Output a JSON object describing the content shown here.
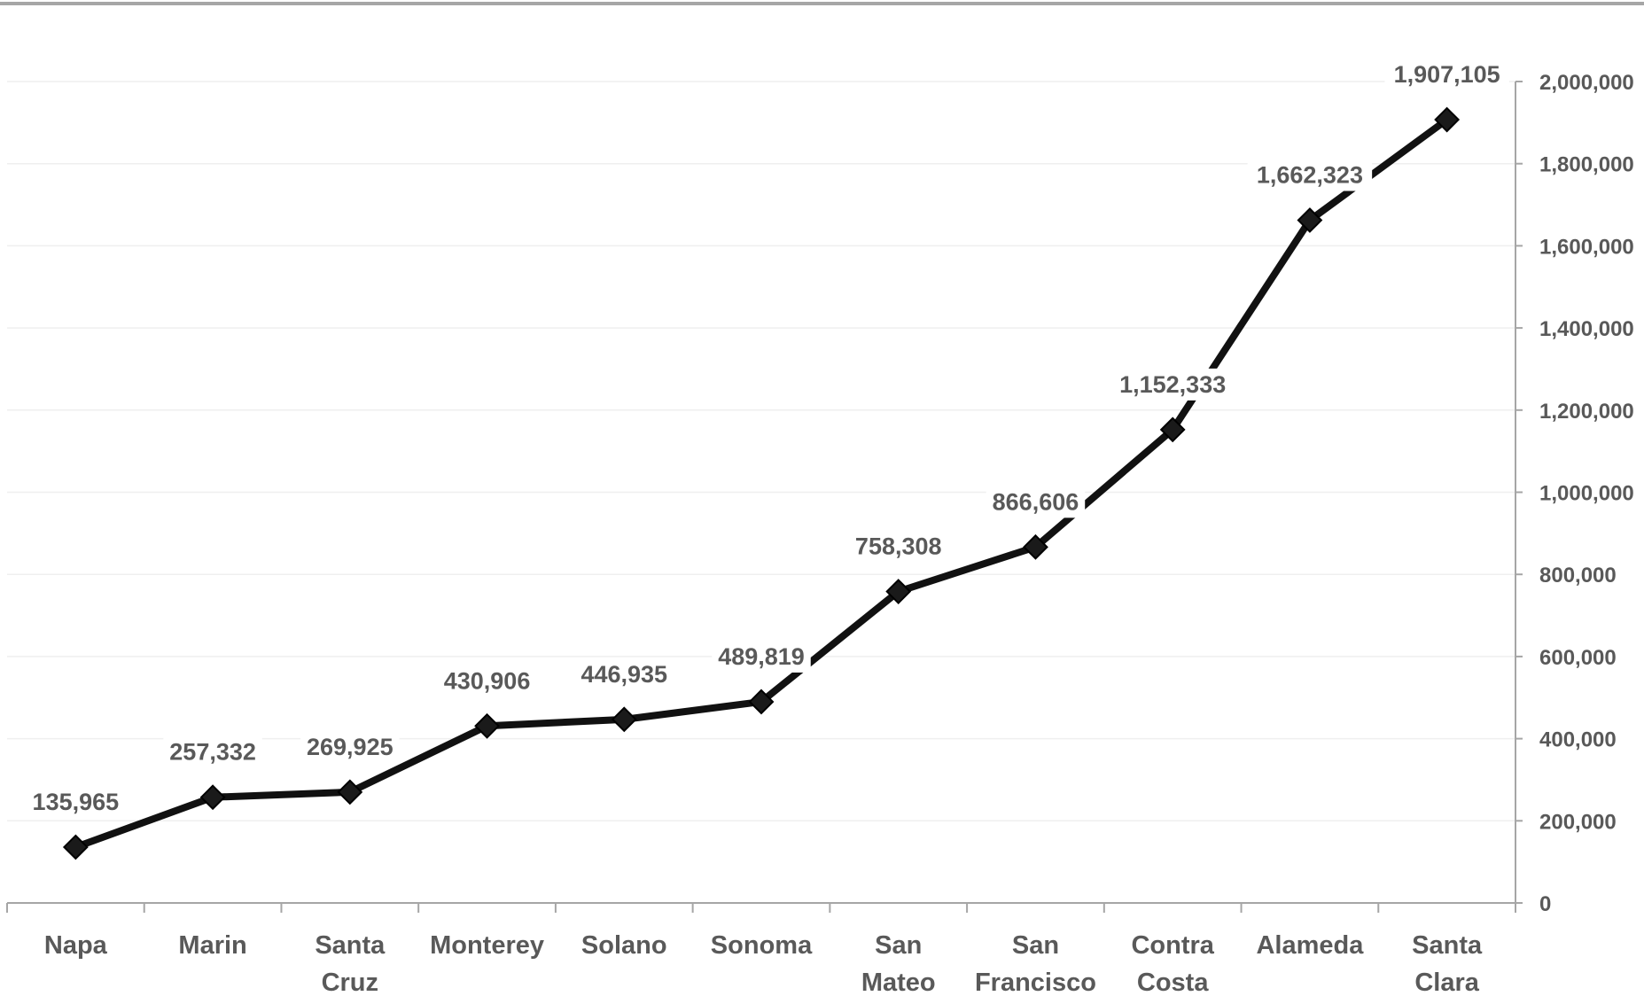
{
  "chart_data": {
    "type": "line",
    "categories": [
      [
        "Napa"
      ],
      [
        "Marin"
      ],
      [
        "Santa",
        "Cruz"
      ],
      [
        "Monterey"
      ],
      [
        "Solano"
      ],
      [
        "Sonoma"
      ],
      [
        "San",
        "Mateo"
      ],
      [
        "San",
        "Francisco"
      ],
      [
        "Contra",
        "Costa"
      ],
      [
        "Alameda"
      ],
      [
        "Santa",
        "Clara"
      ]
    ],
    "values": [
      135965,
      257332,
      269925,
      430906,
      446935,
      489819,
      758308,
      866606,
      1152333,
      1662323,
      1907105
    ],
    "data_labels": [
      "135,965",
      "257,332",
      "269,925",
      "430,906",
      "446,935",
      "489,819",
      "758,308",
      "866,606",
      "1,152,333",
      "1,662,323",
      "1,907,105"
    ],
    "y_ticks": [
      0,
      200000,
      400000,
      600000,
      800000,
      1000000,
      1200000,
      1400000,
      1600000,
      1800000,
      2000000
    ],
    "y_tick_labels": [
      "0",
      "200,000",
      "400,000",
      "600,000",
      "800,000",
      "1,000,000",
      "1,200,000",
      "1,400,000",
      "1,600,000",
      "1,800,000",
      "2,000,000"
    ],
    "ylim": [
      0,
      2000000
    ],
    "y_axis_position": "right",
    "grid": true,
    "marker": "diamond",
    "colors": {
      "line": "#111111",
      "marker": "#1a1a1a",
      "gridline": "#efefef",
      "axis": "#a6a6a6",
      "text": "#595959",
      "top_rule": "#a6a6a6"
    },
    "title": "",
    "xlabel": "",
    "ylabel": ""
  }
}
